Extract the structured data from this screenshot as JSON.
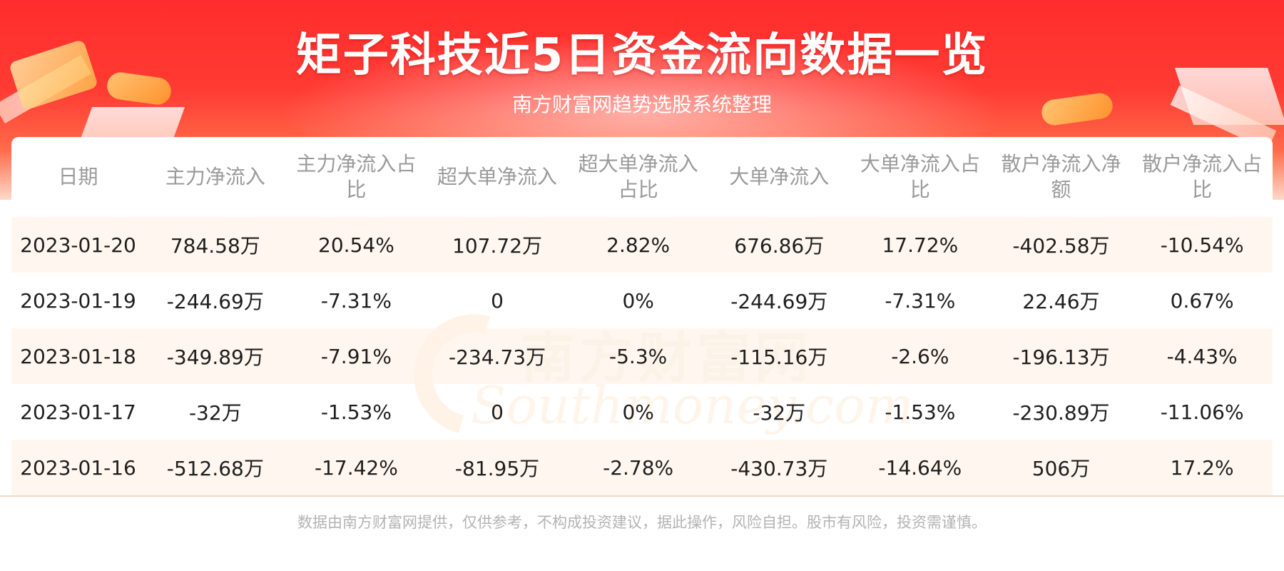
{
  "header": {
    "title": "矩子科技近5日资金流向数据一览",
    "subtitle": "南方财富网趋势选股系统整理"
  },
  "watermark": {
    "text_cn": "南方财富网",
    "text_en": "Southmoney.com"
  },
  "table": {
    "columns": [
      "日期",
      "主力净流入",
      "主力净流入占比",
      "超大单净流入",
      "超大单净流入占比",
      "大单净流入",
      "大单净流入占比",
      "散户净流入净额",
      "散户净流入占比"
    ],
    "rows": [
      [
        "2023-01-20",
        "784.58万",
        "20.54%",
        "107.72万",
        "2.82%",
        "676.86万",
        "17.72%",
        "-402.58万",
        "-10.54%"
      ],
      [
        "2023-01-19",
        "-244.69万",
        "-7.31%",
        "0",
        "0%",
        "-244.69万",
        "-7.31%",
        "22.46万",
        "0.67%"
      ],
      [
        "2023-01-18",
        "-349.89万",
        "-7.91%",
        "-234.73万",
        "-5.3%",
        "-115.16万",
        "-2.6%",
        "-196.13万",
        "-4.43%"
      ],
      [
        "2023-01-17",
        "-32万",
        "-1.53%",
        "0",
        "0%",
        "-32万",
        "-1.53%",
        "-230.89万",
        "-11.06%"
      ],
      [
        "2023-01-16",
        "-512.68万",
        "-17.42%",
        "-81.95万",
        "-2.78%",
        "-430.73万",
        "-14.64%",
        "506万",
        "17.2%"
      ]
    ]
  },
  "footer": {
    "disclaimer": "数据由南方财富网提供，仅供参考，不构成投资建议，据此操作，风险自担。股市有风险，投资需谨慎。"
  },
  "colors": {
    "banner_red": "#ff2d2d",
    "row_highlight": "#fff2e6",
    "header_text": "#9a9a9a"
  }
}
